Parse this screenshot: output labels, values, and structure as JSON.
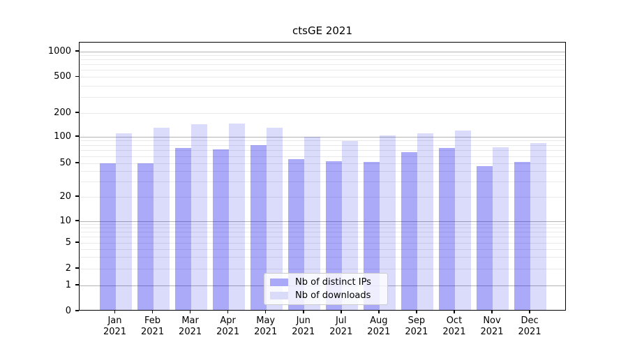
{
  "title": "ctsGE 2021",
  "chart_data": {
    "type": "bar",
    "title": "ctsGE 2021",
    "x_tick_months": [
      "Jan",
      "Feb",
      "Mar",
      "Apr",
      "May",
      "Jun",
      "Jul",
      "Aug",
      "Sep",
      "Oct",
      "Nov",
      "Dec"
    ],
    "x_tick_years": [
      "2021",
      "2021",
      "2021",
      "2021",
      "2021",
      "2021",
      "2021",
      "2021",
      "2021",
      "2021",
      "2021",
      "2021"
    ],
    "series": [
      {
        "name": "Nb of distinct IPs",
        "color": "rgba(10,10,235,0.345)",
        "legend_swatch_hex": "#a9a9f7",
        "values": [
          48,
          48,
          72,
          70,
          78,
          54,
          51,
          50,
          65,
          72,
          45,
          50
        ]
      },
      {
        "name": "Nb of downloads",
        "color": "rgba(10,10,235,0.145)",
        "legend_swatch_hex": "#dadaf9",
        "values": [
          106,
          125,
          140,
          142,
          126,
          96,
          87,
          100,
          106,
          115,
          74,
          82
        ]
      }
    ],
    "yticks": [
      0,
      1,
      2,
      5,
      10,
      20,
      50,
      100,
      200,
      500,
      1000
    ],
    "yscale": "symlog",
    "ylim": [
      0,
      1280
    ],
    "grid": true,
    "legend_position": "lower center",
    "colors": {
      "major_grid": "#b3b3b3",
      "minor_grid": "#e9e9e9",
      "axis": "#000000",
      "text": "#000000"
    }
  }
}
